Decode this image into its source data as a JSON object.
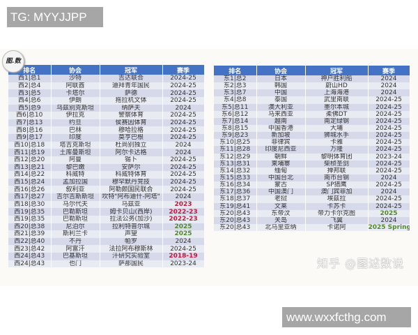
{
  "top_tag": "TG: MYYJJPP",
  "site_tag": "www.wxxfcthg.com",
  "badge": "图.数",
  "watermark": "知乎 @图述数说",
  "season_colors": {
    "default": "#333333",
    "red": "#c0183a",
    "green": "#4f8a2a"
  },
  "headers": [
    "排名",
    "协会",
    "冠军",
    "赛季"
  ],
  "west": [
    [
      "西1|总1",
      "沙特",
      "吉达联合",
      "2024-25",
      ""
    ],
    [
      "西2|总4",
      "阿联酋",
      "迪拜青年国民",
      "2024-25",
      ""
    ],
    [
      "西3|总5",
      "卡塔尔",
      "萨德",
      "2024-25",
      ""
    ],
    [
      "西4|总6",
      "伊朗",
      "拖拉机文体",
      "2024-25",
      ""
    ],
    [
      "西5|总9",
      "乌兹别克斯坦",
      "纳萨夫",
      "2024",
      ""
    ],
    [
      "西6|总10",
      "伊拉克",
      "警察体育",
      "2024-25",
      ""
    ],
    [
      "西7|总13",
      "约旦",
      "侯赛因体育",
      "2024-25",
      ""
    ],
    [
      "西8|总16",
      "巴林",
      "穆哈拉格",
      "2024-25",
      ""
    ],
    [
      "西9|总17",
      "印度",
      "莫亨巴根",
      "2024-25",
      ""
    ],
    [
      "西10|总18",
      "塔吉克斯坦",
      "杜尚别独立",
      "2024",
      ""
    ],
    [
      "西11|总19",
      "土库曼斯坦",
      "阿尔卡达格",
      "2024",
      ""
    ],
    [
      "西12|总20",
      "阿曼",
      "锡卜",
      "2024-25",
      ""
    ],
    [
      "西13|总21",
      "黎巴嫩",
      "安萨尔",
      "2024-25",
      ""
    ],
    [
      "西14|总22",
      "科威特",
      "科威特体育",
      "2024-25",
      ""
    ],
    [
      "西15|总24",
      "孟加拉国",
      "穆罕默丹竞技",
      "2024-25",
      ""
    ],
    [
      "西16|总26",
      "叙利亚",
      "阿勒颇国民联合",
      "2024-25",
      ""
    ],
    [
      "西17|总27",
      "吉尔吉斯斯坦",
      "坎特\"阿布迪什-阿塔\"",
      "2024",
      ""
    ],
    [
      "西18|总30",
      "马尔代夫",
      "马兹亚",
      "2023",
      "red"
    ],
    [
      "西19|总35",
      "巴勒斯坦",
      "姆卡贝山(西岸)",
      "2022-23",
      "red"
    ],
    [
      "西19|总35",
      "巴勒斯坦",
      "拉法公务(加沙)",
      "2022-23",
      "red"
    ],
    [
      "西20|总38",
      "尼泊尔",
      "拉利特普尔城",
      "2025",
      "green"
    ],
    [
      "西21|总39",
      "斯利兰卡",
      "声望",
      "2025",
      "green"
    ],
    [
      "西22|总40",
      "不丹",
      "帕罗",
      "2024",
      ""
    ],
    [
      "西23|总42",
      "阿富汗",
      "法拉阿布穆斯林",
      "2024-25",
      ""
    ],
    [
      "西24|总43",
      "巴基斯坦",
      "汗研究实验室",
      "2018-19",
      "red"
    ],
    [
      "西24|总43",
      "也门",
      "萨那国民",
      "2023-24",
      ""
    ]
  ],
  "east": [
    [
      "东1|总2",
      "日本",
      "神户胜利船",
      "2024",
      ""
    ],
    [
      "东2|总3",
      "韩国",
      "蔚山HD",
      "2024",
      ""
    ],
    [
      "东3|总7",
      "中国",
      "上海海港",
      "2024",
      ""
    ],
    [
      "东4|总8",
      "泰国",
      "武里南联",
      "2024-25",
      ""
    ],
    [
      "东5|总11",
      "澳大利亚",
      "墨尔本城",
      "2024-25",
      ""
    ],
    [
      "东6|总12",
      "马来西亚",
      "柔佛DT",
      "2024-25",
      ""
    ],
    [
      "东7|总14",
      "越南",
      "南定绿钢",
      "2024-25",
      ""
    ],
    [
      "东8|总15",
      "中国香港",
      "大埔",
      "2024-25",
      ""
    ],
    [
      "东9|总23",
      "新加坡",
      "狮城水手",
      "2024-25",
      ""
    ],
    [
      "东10|总25",
      "菲律宾",
      "卡雅",
      "2024-25",
      ""
    ],
    [
      "东11|总28",
      "印度尼西亚",
      "万隆",
      "2024-25",
      ""
    ],
    [
      "东12|总29",
      "朝鲜",
      "黎明体育团",
      "2023-24",
      ""
    ],
    [
      "东13|总31",
      "柬埔寨",
      "柴桢圣剑",
      "2024-25",
      ""
    ],
    [
      "东14|总32",
      "缅甸",
      "掸邦联",
      "2024-25",
      ""
    ],
    [
      "东15|总33",
      "中国台北",
      "南市台钢",
      "2024",
      ""
    ],
    [
      "东16|总34",
      "蒙古",
      "SP猎鹰",
      "2024-25",
      ""
    ],
    [
      "东17|总36",
      "中国澳门",
      "澳门宾菲加",
      "2024",
      ""
    ],
    [
      "东18|总37",
      "老挝",
      "埃兹拉",
      "2024-25",
      ""
    ],
    [
      "东19|总41",
      "文莱",
      "卡苏卡",
      "2024-25",
      ""
    ],
    [
      "东20|总43",
      "东帝汶",
      "帝力卡尔克图",
      "2025",
      "green"
    ],
    [
      "东20|总43",
      "关岛",
      "飞翼",
      "2024",
      ""
    ],
    [
      "东20|总43",
      "北马里亚纳",
      "卡诺阿",
      "2025 Spring",
      "green"
    ]
  ]
}
